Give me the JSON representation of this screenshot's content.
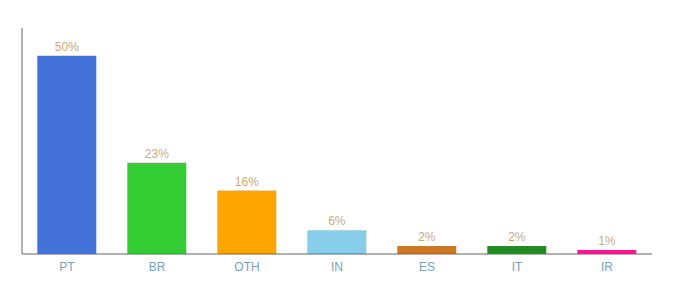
{
  "chart_data": {
    "type": "bar",
    "categories": [
      "PT",
      "BR",
      "OTH",
      "IN",
      "ES",
      "IT",
      "IR"
    ],
    "values": [
      50,
      23,
      16,
      6,
      2,
      2,
      1
    ],
    "value_labels": [
      "50%",
      "23%",
      "16%",
      "6%",
      "2%",
      "2%",
      "1%"
    ],
    "data_labels": true,
    "colors": [
      "#4472DB",
      "#33CC33",
      "#FFA500",
      "#87CEEB",
      "#CC7722",
      "#228B22",
      "#FF1493"
    ],
    "ylim": [
      0,
      57
    ],
    "yticks": [],
    "tick_labels": "x",
    "grid": false
  }
}
